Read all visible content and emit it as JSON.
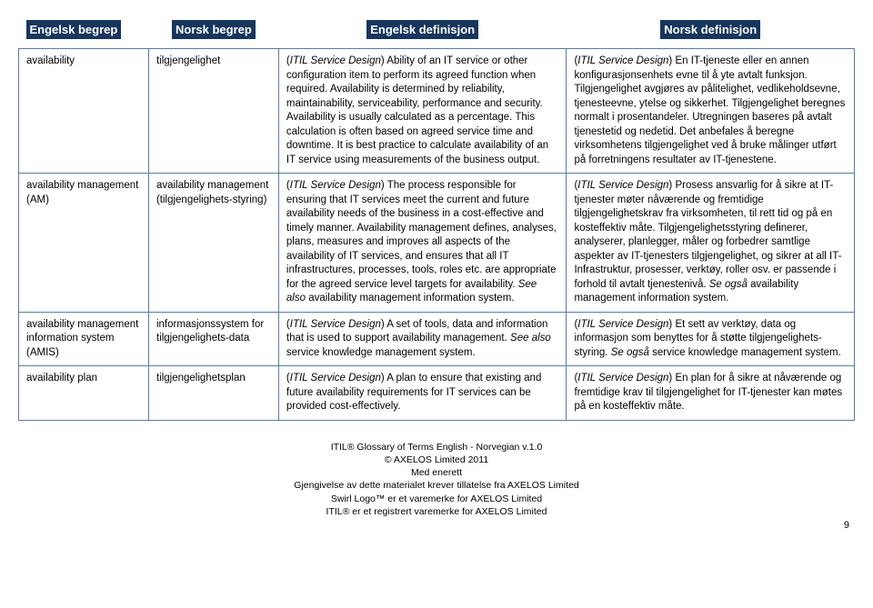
{
  "headers": {
    "col1": "Engelsk begrep",
    "col2": "Norsk begrep",
    "col3": "Engelsk definisjon",
    "col4": "Norsk definisjon"
  },
  "rows": [
    {
      "en_term": "availability",
      "no_term": "tilgjengelighet",
      "en_def": "(<i>ITIL Service Design</i>) Ability of an IT service or other configuration item to perform its agreed function when required. Availability is determined by reliability, maintainability, serviceability, performance and security. Availability is usually calculated as a percentage. This calculation is often based on agreed service time and downtime. It is best practice to calculate availability of an IT service using measurements of the business output.",
      "no_def": "(<i>ITIL Service Design</i>) En IT-tjeneste eller en annen konfigurasjonsenhets evne til å yte avtalt funksjon. Tilgjengelighet avgjøres av pålitelighet, vedlikeholdsevne, tjenesteevne, ytelse og sikkerhet. Tilgjengelighet beregnes normalt i prosentandeler. Utregningen baseres på avtalt tjenestetid og nedetid. Det anbefales å beregne virksomhetens tilgjengelighet ved å bruke målinger utført på forretningens resultater av IT-tjenestene."
    },
    {
      "en_term": "availability management (AM)",
      "no_term": "availability management (tilgjengelighets-styring)",
      "en_def": "(<i>ITIL Service Design</i>) The process responsible for ensuring that IT services meet the current and future availability needs of the business in a cost-effective and timely manner. Availability management defines, analyses, plans, measures and improves all aspects of the availability of IT services, and ensures that all IT infrastructures, processes, tools, roles etc. are appropriate for the agreed service level targets for availability. <i>See also</i> availability management information system.",
      "no_def": "(<i>ITIL Service Design</i>) Prosess ansvarlig for å sikre at IT-tjenester møter nåværende og fremtidige tilgjengelighetskrav fra virksomheten, til rett tid og på en kosteffektiv måte. Tilgjengelighetsstyring definerer, analyserer, planlegger, måler og forbedrer samtlige aspekter av IT-tjenesters tilgjengelighet, og sikrer at all IT- Infrastruktur, prosesser, verktøy, roller osv. er passende i forhold til avtalt tjenestenivå. <i>Se også</i> availability management information system."
    },
    {
      "en_term": "availability management information system (AMIS)",
      "no_term": "informasjonssystem for tilgjengelighets-data",
      "en_def": "(<i>ITIL Service Design</i>) A set of tools, data and information that is used to support availability management. <i>See also</i> service knowledge management system.",
      "no_def": "(<i>ITIL Service Design</i>) Et sett av verktøy, data og informasjon som benyttes for å støtte tilgjengelighets-styring. <i>Se også</i> service knowledge management system."
    },
    {
      "en_term": "availability plan",
      "no_term": "tilgjengelighetsplan",
      "en_def": "(<i>ITIL Service Design</i>) A plan to ensure that existing and future availability requirements for IT services can be provided cost-effectively.",
      "no_def": "(<i>ITIL Service Design</i>) En plan for å sikre at nåværende og fremtidige krav til tilgjengelighet for IT-tjenester kan møtes på en kosteffektiv måte."
    }
  ],
  "footer": {
    "l1": "ITIL® Glossary of Terms English - Norvegian v.1.0",
    "l2": "© AXELOS Limited 2011",
    "l3": "Med enerett",
    "l4": "Gjengivelse av dette materialet krever tillatelse fra AXELOS Limited",
    "l5": "Swirl Logo™ er et varemerke for AXELOS Limited",
    "l6": "ITIL® er et registrert varemerke for AXELOS Limited"
  },
  "page_number": "9"
}
